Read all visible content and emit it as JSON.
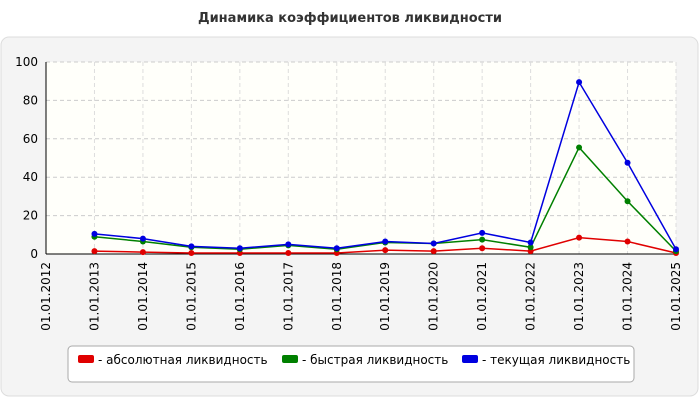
{
  "chart_data": {
    "type": "line",
    "title": "Динамика коэффициентов ликвидности",
    "categories": [
      "01.01.2012",
      "01.01.2013",
      "01.01.2014",
      "01.01.2015",
      "01.01.2016",
      "01.01.2017",
      "01.01.2018",
      "01.01.2019",
      "01.01.2020",
      "01.01.2021",
      "01.01.2022",
      "01.01.2023",
      "01.01.2024",
      "01.01.2025"
    ],
    "series": [
      {
        "name": "- абсолютная ликвидность",
        "color": "#e00000",
        "values": [
          null,
          1.5,
          1,
          0.5,
          0.5,
          0.5,
          0.5,
          2,
          1.5,
          3,
          1.5,
          8.5,
          6.5,
          0.5
        ]
      },
      {
        "name": "- быстрая ликвидность",
        "color": "#008000",
        "values": [
          null,
          9,
          6.5,
          3.5,
          2.5,
          4.5,
          2.5,
          6,
          5.5,
          7.5,
          3.5,
          55.5,
          27.5,
          1.5
        ]
      },
      {
        "name": "- текущая ликвидность",
        "color": "#0000e0",
        "values": [
          null,
          10.5,
          8,
          4,
          3,
          5,
          3,
          6.5,
          5.5,
          11,
          6,
          89.5,
          47.5,
          2.5
        ]
      }
    ],
    "ylim": [
      0,
      100
    ],
    "yticks": [
      0,
      20,
      40,
      60,
      80,
      100
    ],
    "grid": true
  }
}
